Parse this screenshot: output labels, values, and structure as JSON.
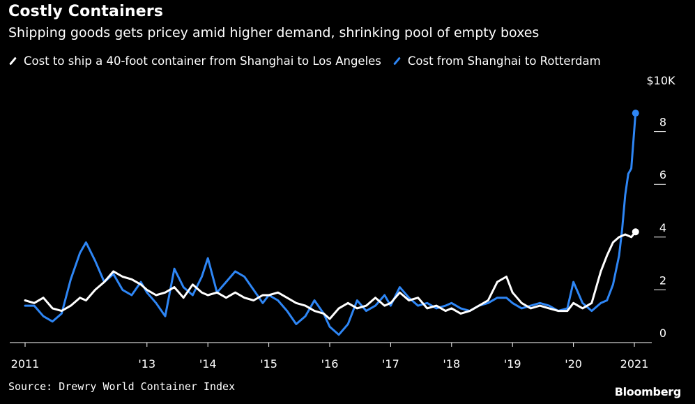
{
  "header": {
    "title": "Costly Containers",
    "subtitle": "Shipping goods gets pricey amid higher demand, shrinking pool of empty boxes"
  },
  "footer": {
    "source": "Source: Drewry World Container Index",
    "brand": "Bloomberg"
  },
  "chart_data": {
    "type": "line",
    "title": "Costly Containers",
    "subtitle": "Shipping goods gets pricey amid higher demand, shrinking pool of empty boxes",
    "xlabel": "",
    "ylabel": "",
    "unit_label": "$10K",
    "xlim": [
      2011.0,
      2021.15
    ],
    "ylim": [
      0,
      10000
    ],
    "yticks": [
      0,
      2000,
      4000,
      6000,
      8000
    ],
    "ytick_labels": [
      "0",
      "2",
      "4",
      "6",
      "8"
    ],
    "xticks": [
      2011,
      2013,
      2014,
      2015,
      2016,
      2017,
      2018,
      2019,
      2020,
      2021
    ],
    "xtick_labels": [
      "2011",
      "'13",
      "'14",
      "'15",
      "'16",
      "'17",
      "'18",
      "'19",
      "'20",
      "2021"
    ],
    "grid": false,
    "legend_position": "top",
    "series": [
      {
        "name": "Cost to ship a 40-foot container from Shanghai to Los Angeles",
        "color": "#ffffff",
        "x": [
          2011.0,
          2011.15,
          2011.3,
          2011.45,
          2011.6,
          2011.75,
          2011.9,
          2012.0,
          2012.15,
          2012.3,
          2012.45,
          2012.6,
          2012.75,
          2012.9,
          2013.0,
          2013.15,
          2013.3,
          2013.45,
          2013.6,
          2013.75,
          2013.9,
          2014.0,
          2014.15,
          2014.3,
          2014.45,
          2014.6,
          2014.75,
          2014.9,
          2015.0,
          2015.15,
          2015.3,
          2015.45,
          2015.6,
          2015.75,
          2015.9,
          2016.0,
          2016.15,
          2016.3,
          2016.45,
          2016.6,
          2016.75,
          2016.9,
          2017.0,
          2017.15,
          2017.3,
          2017.45,
          2017.6,
          2017.75,
          2017.9,
          2018.0,
          2018.15,
          2018.3,
          2018.45,
          2018.6,
          2018.75,
          2018.9,
          2019.0,
          2019.15,
          2019.3,
          2019.45,
          2019.6,
          2019.75,
          2019.9,
          2020.0,
          2020.15,
          2020.3,
          2020.45,
          2020.55,
          2020.65,
          2020.75,
          2020.85,
          2020.95,
          2021.02
        ],
        "values": [
          1600,
          1500,
          1700,
          1300,
          1200,
          1400,
          1700,
          1600,
          2000,
          2300,
          2700,
          2500,
          2400,
          2200,
          2000,
          1800,
          1900,
          2100,
          1700,
          2200,
          1900,
          1800,
          1900,
          1700,
          1900,
          1700,
          1600,
          1800,
          1800,
          1900,
          1700,
          1500,
          1400,
          1200,
          1100,
          900,
          1300,
          1500,
          1300,
          1400,
          1700,
          1400,
          1500,
          1900,
          1600,
          1700,
          1300,
          1400,
          1200,
          1300,
          1100,
          1200,
          1400,
          1600,
          2300,
          2500,
          1900,
          1500,
          1300,
          1400,
          1300,
          1200,
          1200,
          1500,
          1300,
          1500,
          2700,
          3300,
          3800,
          4000,
          4100,
          4000,
          4200
        ]
      },
      {
        "name": "Cost from Shanghai to Rotterdam",
        "color": "#2e86f5",
        "x": [
          2011.0,
          2011.15,
          2011.3,
          2011.45,
          2011.6,
          2011.75,
          2011.9,
          2012.0,
          2012.15,
          2012.3,
          2012.45,
          2012.6,
          2012.75,
          2012.9,
          2013.0,
          2013.15,
          2013.3,
          2013.45,
          2013.6,
          2013.75,
          2013.9,
          2014.0,
          2014.15,
          2014.3,
          2014.45,
          2014.6,
          2014.75,
          2014.9,
          2015.0,
          2015.15,
          2015.3,
          2015.45,
          2015.6,
          2015.75,
          2015.9,
          2016.0,
          2016.15,
          2016.3,
          2016.45,
          2016.6,
          2016.75,
          2016.9,
          2017.0,
          2017.15,
          2017.3,
          2017.45,
          2017.6,
          2017.75,
          2017.9,
          2018.0,
          2018.15,
          2018.3,
          2018.45,
          2018.6,
          2018.75,
          2018.9,
          2019.0,
          2019.15,
          2019.3,
          2019.45,
          2019.6,
          2019.75,
          2019.9,
          2020.0,
          2020.15,
          2020.3,
          2020.45,
          2020.55,
          2020.65,
          2020.75,
          2020.8,
          2020.85,
          2020.9,
          2020.95,
          2021.02
        ],
        "values": [
          1400,
          1400,
          1000,
          800,
          1100,
          2400,
          3400,
          3800,
          3100,
          2300,
          2600,
          2000,
          1800,
          2300,
          1900,
          1500,
          1000,
          2800,
          2100,
          1800,
          2500,
          3200,
          1900,
          2300,
          2700,
          2500,
          2000,
          1500,
          1800,
          1600,
          1200,
          700,
          1000,
          1600,
          1100,
          600,
          300,
          700,
          1600,
          1200,
          1400,
          1800,
          1400,
          2100,
          1700,
          1400,
          1500,
          1300,
          1400,
          1500,
          1300,
          1200,
          1400,
          1500,
          1700,
          1700,
          1500,
          1300,
          1400,
          1500,
          1400,
          1200,
          1300,
          2300,
          1500,
          1200,
          1500,
          1600,
          2200,
          3300,
          4300,
          5600,
          6400,
          6600,
          8700
        ]
      }
    ]
  }
}
